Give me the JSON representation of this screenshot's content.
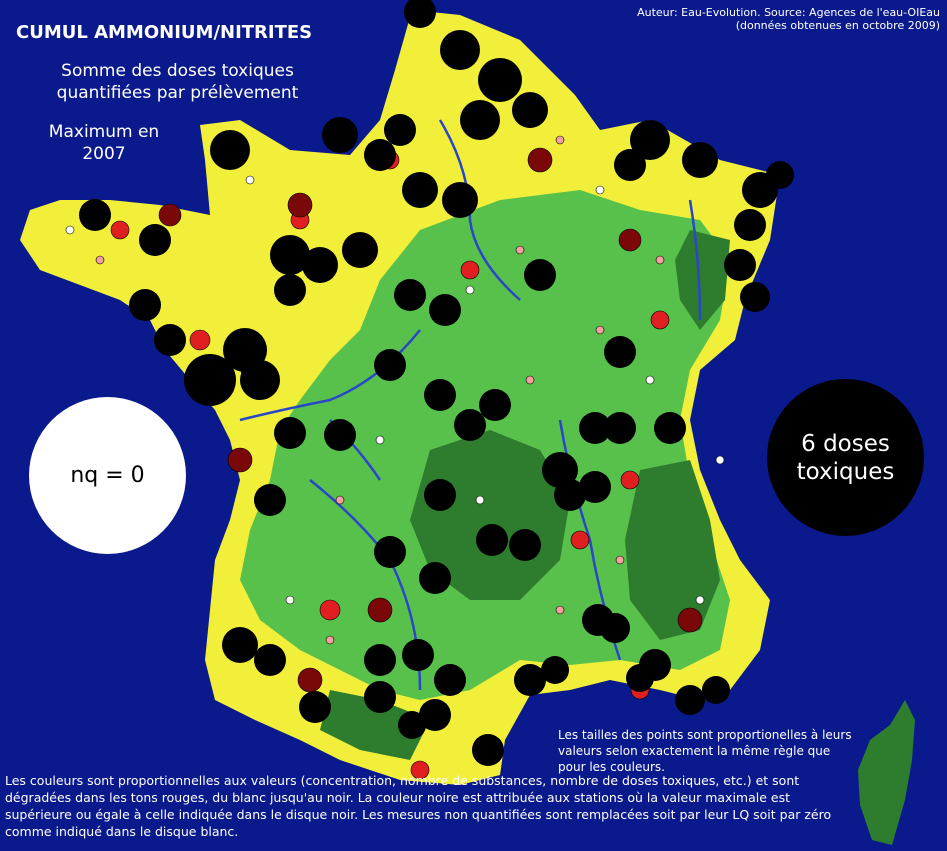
{
  "header": {
    "title": "CUMUL AMMONIUM/NITRITES",
    "subtitle": "Somme des doses toxiques quantifiées par prélèvement",
    "period": "Maximum en 2007",
    "credit": "Auteur: Eau-Evolution. Source: Agences de l'eau-OIEau (données obtenues en octobre 2009)"
  },
  "legend": {
    "white_disc_label": "nq = 0",
    "black_disc_label": "6 doses toxiques",
    "size_note": "Les tailles des points sont proportionelles à leurs valeurs selon exactement la même règle que pour les couleurs.",
    "color_note": "Les couleurs sont proportionnelles aux valeurs (concentration, nombre de substances, nombre de doses toxiques, etc.) et sont dégradées dans les tons rouges, du blanc jusqu'au noir. La couleur noire est attribuée aux stations où la valeur maximale est supérieure ou égale à celle indiquée dans le disque noir. Les mesures non quantifiées sont remplacées soit par leur LQ soit par zéro comme indiqué dans le disque blanc."
  },
  "colors": {
    "sea": "#0a1a8c",
    "zone_high": "#f2ef3a",
    "zone_mid": "#58c14c",
    "zone_low": "#2e7d2e",
    "zone_relief": "#8a6a35",
    "river": "#2a47c8",
    "scale_white": "#ffffff",
    "scale_pink": "#f4a0a0",
    "scale_red": "#e02020",
    "scale_darkred": "#7a0808",
    "scale_black": "#000000"
  }
}
